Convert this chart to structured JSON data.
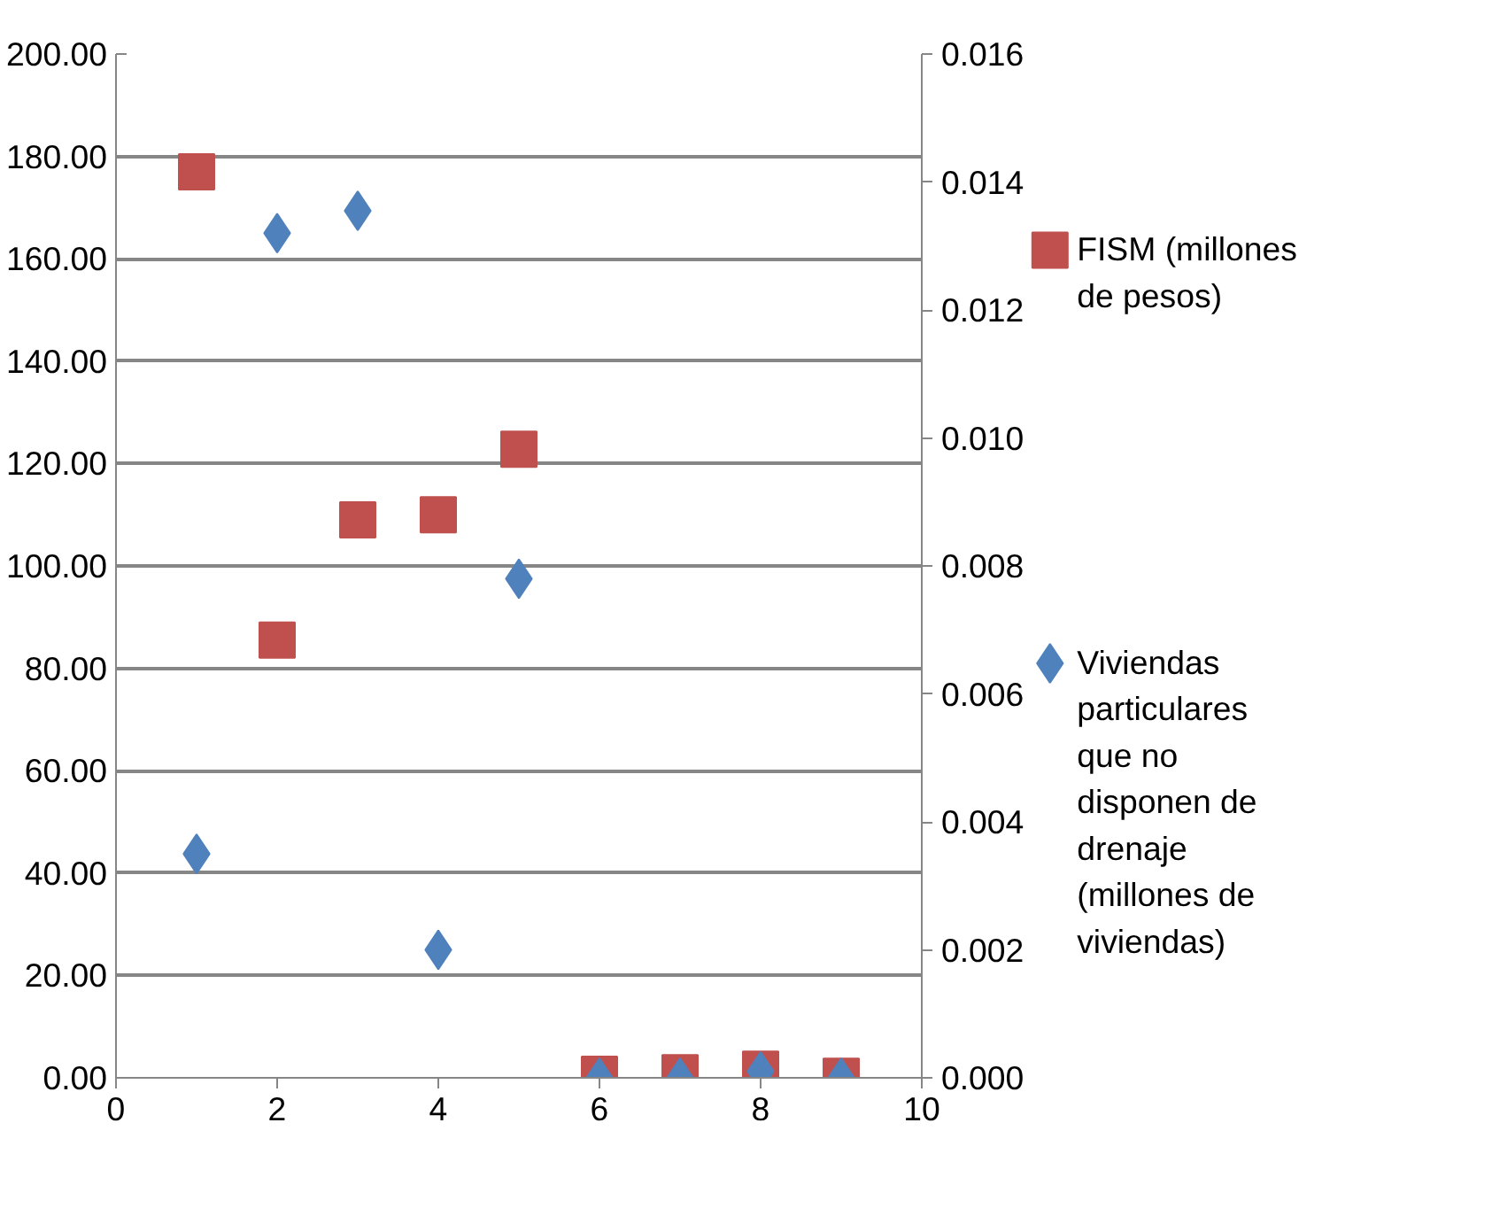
{
  "chart_data": {
    "type": "scatter",
    "x": [
      1,
      2,
      3,
      4,
      5,
      6,
      7,
      8,
      9
    ],
    "series": [
      {
        "name": "FISM (millones de pesos)",
        "color": "#c0504d",
        "marker": "square",
        "values": [
          177,
          85.5,
          109,
          110,
          122.8,
          0.7,
          1.0,
          1.7,
          0.3
        ]
      },
      {
        "name": "Viviendas particulares que no disponen de drenaje (millones de viviendas)",
        "color": "#4f81bd",
        "marker": "diamond",
        "axis": "y2",
        "values": [
          0.0035,
          0.0132,
          0.01355,
          0.002,
          0.0078,
          0.0,
          0.0,
          0.0001,
          0.0
        ]
      }
    ],
    "xlim": [
      0,
      10
    ],
    "xticks": [
      0,
      2,
      4,
      6,
      8,
      10
    ],
    "ylim": [
      0,
      200
    ],
    "yticks": [
      {
        "value": 0,
        "label": "0.00"
      },
      {
        "value": 20,
        "label": "20.00"
      },
      {
        "value": 40,
        "label": "40.00"
      },
      {
        "value": 60,
        "label": "60.00"
      },
      {
        "value": 80,
        "label": "80.00"
      },
      {
        "value": 100,
        "label": "100.00"
      },
      {
        "value": 120,
        "label": "120.00"
      },
      {
        "value": 140,
        "label": "140.00"
      },
      {
        "value": 160,
        "label": "160.00"
      },
      {
        "value": 180,
        "label": "180.00"
      },
      {
        "value": 200,
        "label": "200.00"
      }
    ],
    "y2lim": [
      0,
      0.016
    ],
    "y2ticks": [
      {
        "value": 0,
        "label": "0.000"
      },
      {
        "value": 0.002,
        "label": "0.002"
      },
      {
        "value": 0.004,
        "label": "0.004"
      },
      {
        "value": 0.006,
        "label": "0.006"
      },
      {
        "value": 0.008,
        "label": "0.008"
      },
      {
        "value": 0.01,
        "label": "0.010"
      },
      {
        "value": 0.012,
        "label": "0.012"
      },
      {
        "value": 0.014,
        "label": "0.014"
      },
      {
        "value": 0.016,
        "label": "0.016"
      }
    ],
    "grid": "y",
    "legend": "right"
  }
}
